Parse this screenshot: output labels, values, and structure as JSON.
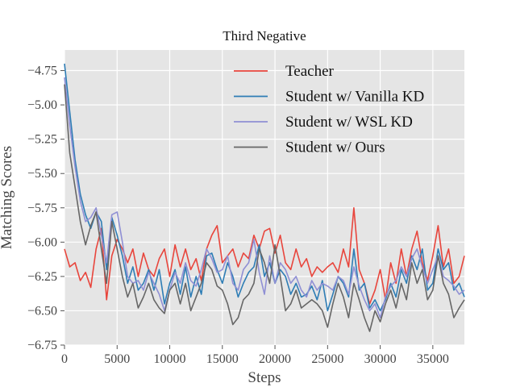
{
  "chart_data": {
    "type": "line",
    "title": "Third Negative",
    "xlabel": "Steps",
    "ylabel": "Matching Scores",
    "xlim": [
      0,
      38000
    ],
    "ylim": [
      -6.75,
      -4.6
    ],
    "xticks": [
      0,
      5000,
      10000,
      15000,
      20000,
      25000,
      30000,
      35000
    ],
    "xtick_labels": [
      "0",
      "5000",
      "10000",
      "15000",
      "20000",
      "25000",
      "30000",
      "35000"
    ],
    "yticks": [
      -4.75,
      -5.0,
      -5.25,
      -5.5,
      -5.75,
      -6.0,
      -6.25,
      -6.5,
      -6.75
    ],
    "ytick_labels": [
      "−4.75",
      "−5.00",
      "−5.25",
      "−5.50",
      "−5.75",
      "−6.00",
      "−6.25",
      "−6.50",
      "−6.75"
    ],
    "grid": true,
    "legend_position": "top-right",
    "x": [
      0,
      500,
      1000,
      1500,
      2000,
      2500,
      3000,
      3500,
      4000,
      4500,
      5000,
      5500,
      6000,
      6500,
      7000,
      7500,
      8000,
      8500,
      9000,
      9500,
      10000,
      10500,
      11000,
      11500,
      12000,
      12500,
      13000,
      13500,
      14000,
      14500,
      15000,
      15500,
      16000,
      16500,
      17000,
      17500,
      18000,
      18500,
      19000,
      19500,
      20000,
      20500,
      21000,
      21500,
      22000,
      22500,
      23000,
      23500,
      24000,
      24500,
      25000,
      25500,
      26000,
      26500,
      27000,
      27500,
      28000,
      28500,
      29000,
      29500,
      30000,
      30500,
      31000,
      31500,
      32000,
      32500,
      33000,
      33500,
      34000,
      34500,
      35000,
      35500,
      36000,
      36500,
      37000,
      37500,
      38000
    ],
    "series": [
      {
        "name": "Teacher",
        "color": "#e8453c",
        "values": [
          -6.05,
          -6.18,
          -6.15,
          -6.28,
          -6.22,
          -6.33,
          -6.05,
          -5.9,
          -6.42,
          -6.1,
          -5.98,
          -6.05,
          -6.15,
          -6.05,
          -6.25,
          -6.08,
          -6.2,
          -6.25,
          -6.12,
          -6.05,
          -6.25,
          -6.02,
          -6.18,
          -6.05,
          -6.2,
          -6.12,
          -6.28,
          -6.05,
          -5.95,
          -5.88,
          -6.15,
          -6.1,
          -6.05,
          -6.18,
          -6.08,
          -6.12,
          -5.95,
          -6.05,
          -5.92,
          -5.9,
          -6.08,
          -5.95,
          -6.15,
          -6.2,
          -6.05,
          -6.18,
          -6.12,
          -6.25,
          -6.18,
          -6.22,
          -6.18,
          -6.15,
          -6.22,
          -6.05,
          -6.18,
          -5.75,
          -6.2,
          -6.3,
          -6.45,
          -6.35,
          -6.2,
          -6.42,
          -6.15,
          -6.3,
          -6.05,
          -6.25,
          -6.05,
          -5.92,
          -6.15,
          -6.28,
          -6.1,
          -5.88,
          -6.18,
          -6.05,
          -6.3,
          -6.25,
          -6.1
        ]
      },
      {
        "name": "Student w/ Vanilla KD",
        "color": "#2e7db5",
        "values": [
          -4.7,
          -5.05,
          -5.4,
          -5.65,
          -5.8,
          -5.9,
          -5.78,
          -5.85,
          -6.2,
          -5.82,
          -5.95,
          -6.1,
          -6.3,
          -6.18,
          -6.35,
          -6.3,
          -6.2,
          -6.35,
          -6.2,
          -6.45,
          -6.3,
          -6.2,
          -6.38,
          -6.18,
          -6.4,
          -6.25,
          -6.38,
          -6.1,
          -6.08,
          -6.2,
          -6.3,
          -6.15,
          -6.25,
          -6.4,
          -6.3,
          -6.22,
          -6.18,
          -6.02,
          -6.25,
          -6.15,
          -6.3,
          -6.2,
          -6.25,
          -6.38,
          -6.3,
          -6.4,
          -6.38,
          -6.32,
          -6.42,
          -6.28,
          -6.5,
          -6.38,
          -6.25,
          -6.3,
          -6.4,
          -6.05,
          -6.35,
          -6.3,
          -6.48,
          -6.42,
          -6.5,
          -6.42,
          -6.3,
          -6.4,
          -6.2,
          -6.3,
          -6.1,
          -6.2,
          -6.05,
          -6.35,
          -6.3,
          -6.05,
          -6.2,
          -6.15,
          -6.35,
          -6.3,
          -6.4
        ]
      },
      {
        "name": "Student w/ WSL KD",
        "color": "#8f8fd4",
        "values": [
          -4.8,
          -5.15,
          -5.45,
          -5.7,
          -5.85,
          -5.82,
          -5.75,
          -5.95,
          -6.15,
          -5.8,
          -5.78,
          -6.0,
          -6.25,
          -6.3,
          -6.28,
          -6.35,
          -6.22,
          -6.3,
          -6.38,
          -6.5,
          -6.35,
          -6.22,
          -6.3,
          -6.15,
          -6.28,
          -6.32,
          -6.2,
          -6.05,
          -6.12,
          -6.22,
          -6.2,
          -6.1,
          -6.3,
          -6.35,
          -6.2,
          -6.15,
          -5.98,
          -6.22,
          -6.38,
          -6.1,
          -6.3,
          -6.15,
          -6.2,
          -6.3,
          -6.25,
          -6.35,
          -6.4,
          -6.28,
          -6.35,
          -6.3,
          -6.32,
          -6.35,
          -6.25,
          -6.28,
          -6.38,
          -6.18,
          -6.32,
          -6.42,
          -6.5,
          -6.45,
          -6.55,
          -6.4,
          -6.32,
          -6.28,
          -6.18,
          -6.25,
          -6.12,
          -6.05,
          -6.18,
          -6.3,
          -6.2,
          -6.1,
          -6.25,
          -6.28,
          -6.32,
          -6.38,
          -6.35
        ]
      },
      {
        "name": "Student w/ Ours",
        "color": "#666666",
        "values": [
          -4.85,
          -5.35,
          -5.6,
          -5.85,
          -6.02,
          -5.88,
          -5.78,
          -6.05,
          -6.3,
          -5.85,
          -6.05,
          -6.25,
          -6.4,
          -6.3,
          -6.48,
          -6.4,
          -6.3,
          -6.42,
          -6.48,
          -6.52,
          -6.35,
          -6.3,
          -6.45,
          -6.3,
          -6.5,
          -6.4,
          -6.3,
          -6.15,
          -6.2,
          -6.32,
          -6.35,
          -6.45,
          -6.6,
          -6.55,
          -6.42,
          -6.38,
          -6.3,
          -6.05,
          -6.15,
          -6.3,
          -6.02,
          -6.25,
          -6.5,
          -6.45,
          -6.35,
          -6.48,
          -6.45,
          -6.42,
          -6.45,
          -6.5,
          -6.62,
          -6.45,
          -6.3,
          -6.4,
          -6.55,
          -6.3,
          -6.42,
          -6.55,
          -6.65,
          -6.5,
          -6.58,
          -6.45,
          -6.35,
          -6.48,
          -6.3,
          -6.42,
          -6.15,
          -6.3,
          -6.2,
          -6.42,
          -6.35,
          -6.1,
          -6.3,
          -6.38,
          -6.55,
          -6.48,
          -6.42
        ]
      }
    ]
  }
}
